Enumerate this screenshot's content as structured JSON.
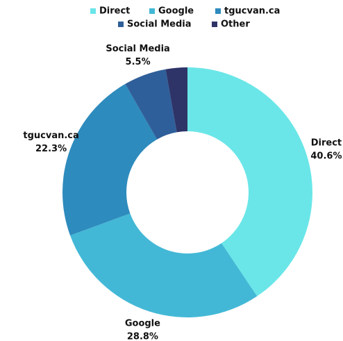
{
  "chart_data": {
    "type": "donut",
    "categories": [
      "Direct",
      "Google",
      "tgucvan.ca",
      "Social Media",
      "Other"
    ],
    "values": [
      40.6,
      28.8,
      22.3,
      5.5,
      2.8
    ],
    "value_labels": [
      "40.6%",
      "28.8%",
      "22.3%",
      "5.5%",
      null
    ],
    "colors": [
      "#6ae6e8",
      "#43b8d6",
      "#2e8bbd",
      "#2f5f9a",
      "#2e3468"
    ],
    "legend": "top"
  }
}
